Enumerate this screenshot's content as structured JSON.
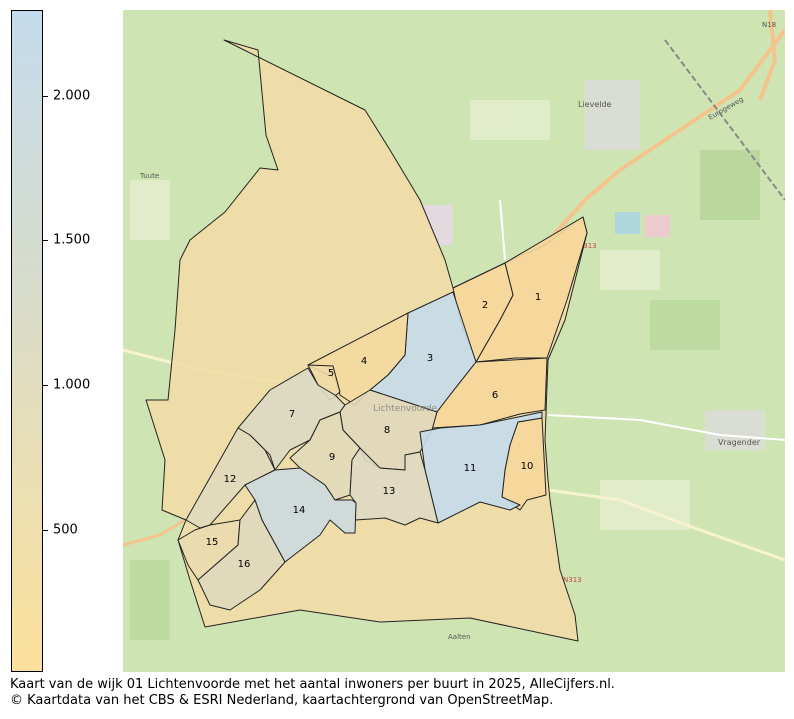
{
  "colorbar": {
    "ticks": [
      {
        "value": 2000,
        "label": "2.000"
      },
      {
        "value": 1500,
        "label": "1.500"
      },
      {
        "value": 1000,
        "label": "1.000"
      },
      {
        "value": 500,
        "label": "500"
      }
    ],
    "range": [
      10,
      2300
    ],
    "color_low": "#fbe09b",
    "color_high": "#c4dbec"
  },
  "map": {
    "place_labels": {
      "lievelde": "Lievelde",
      "vragender": "Vragender",
      "tuute": "Tuute",
      "lichtenvoorde": "Lichtenvoorde",
      "n18": "N18",
      "n313a": "N313",
      "n313b": "N313",
      "aalten": "Aalten",
      "eurogeweg": "Eurogeweg"
    },
    "neighbourhoods": [
      "1",
      "2",
      "3",
      "4",
      "5",
      "6",
      "7",
      "8",
      "9",
      "10",
      "11",
      "12",
      "13",
      "14",
      "15",
      "16"
    ]
  },
  "caption": {
    "line1": "Kaart van de wijk 01 Lichtenvoorde met het aantal inwoners per buurt in 2025, AlleCijfers.nl.",
    "line2": "© Kaartdata van het CBS & ESRI Nederland, kaartachtergrond van OpenStreetMap."
  }
}
